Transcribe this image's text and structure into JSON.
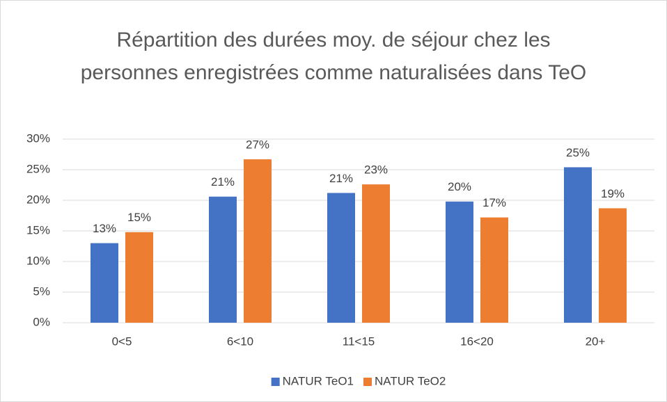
{
  "chart_data": {
    "type": "bar",
    "title": "Répartition des durées moy. de séjour chez les personnes enregistrées comme naturalisées dans TeO",
    "categories": [
      "0<5",
      "6<10",
      "11<15",
      "16<20",
      "20+"
    ],
    "series": [
      {
        "name": "NATUR TeO1",
        "color": "#4472c4",
        "values": [
          13.0,
          20.6,
          21.2,
          19.8,
          25.4
        ],
        "value_labels": [
          "13%",
          "21%",
          "21%",
          "20%",
          "25%"
        ]
      },
      {
        "name": "NATUR TeO2",
        "color": "#ed7d31",
        "values": [
          14.8,
          26.7,
          22.6,
          17.2,
          18.7
        ],
        "value_labels": [
          "15%",
          "27%",
          "23%",
          "17%",
          "19%"
        ]
      }
    ],
    "ylim": [
      0,
      30
    ],
    "yticks": [
      {
        "value": 0,
        "label": "0%"
      },
      {
        "value": 5,
        "label": "5%"
      },
      {
        "value": 10,
        "label": "10%"
      },
      {
        "value": 15,
        "label": "15%"
      },
      {
        "value": 20,
        "label": "20%"
      },
      {
        "value": 25,
        "label": "25%"
      },
      {
        "value": 30,
        "label": "30%"
      }
    ],
    "grid": true,
    "legend": "bottom"
  }
}
